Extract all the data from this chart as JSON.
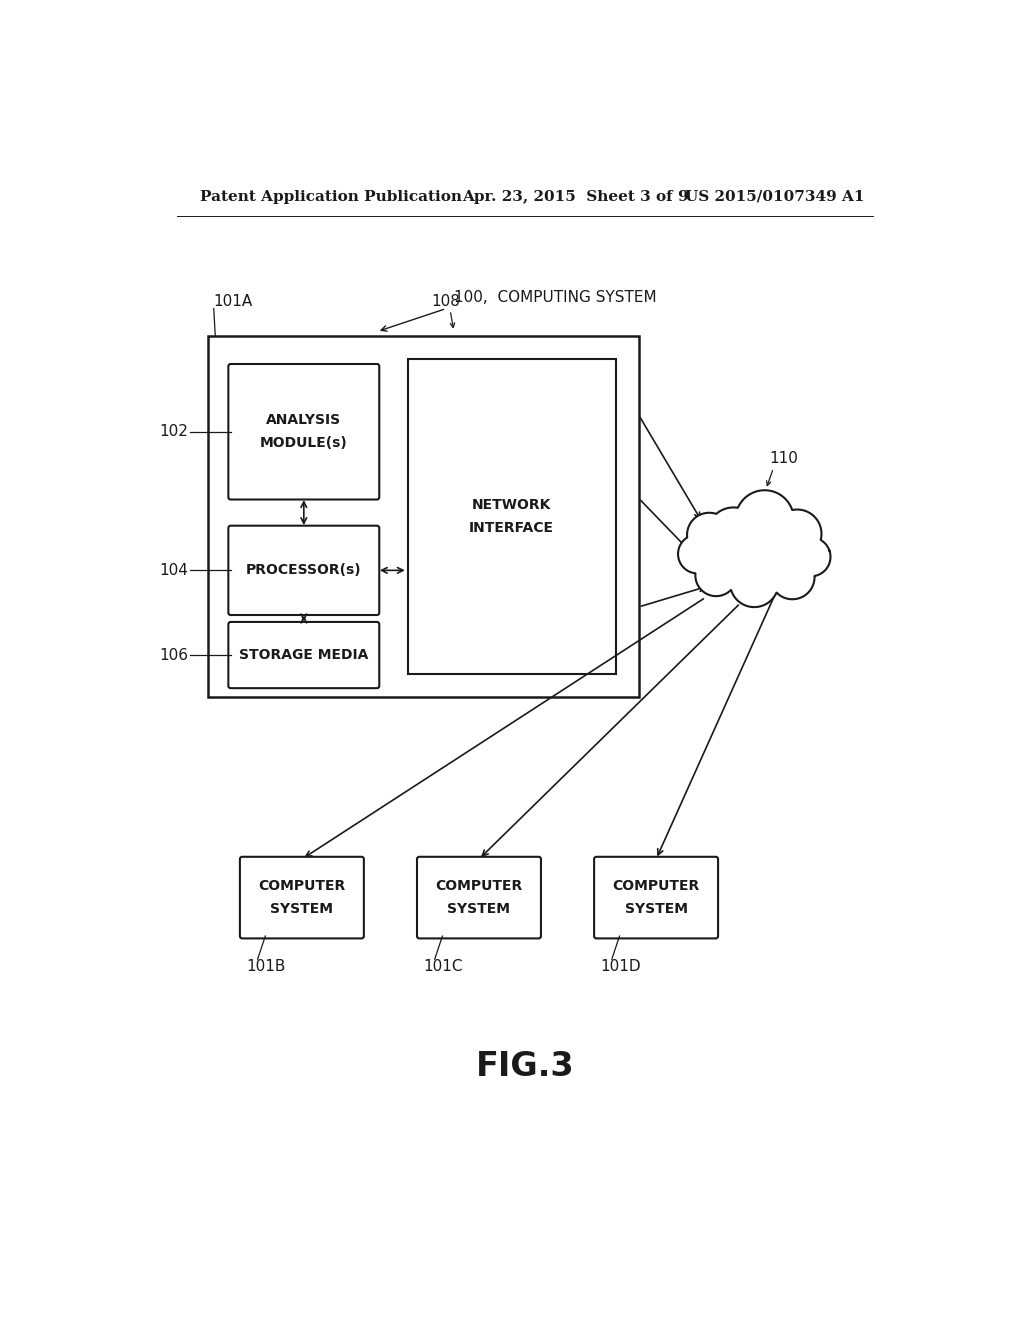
{
  "bg_color": "#ffffff",
  "text_color": "#1a1a1a",
  "header_left": "Patent Application Publication",
  "header_mid": "Apr. 23, 2015  Sheet 3 of 9",
  "header_right": "US 2015/0107349 A1",
  "fig_label": "FIG.3",
  "label_100": "100,  COMPUTING SYSTEM",
  "label_101A": "101A",
  "label_102": "102",
  "label_104": "104",
  "label_106": "106",
  "label_108": "108",
  "label_110": "110",
  "label_101B": "101B",
  "label_101C": "101C",
  "label_101D": "101D"
}
